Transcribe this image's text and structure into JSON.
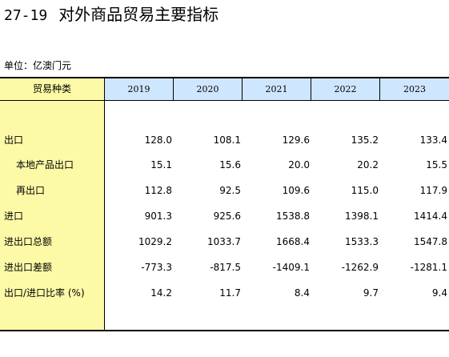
{
  "header": {
    "code": "27-19",
    "title": "对外商品贸易主要指标",
    "unit": "单位：亿澳门元"
  },
  "table": {
    "stub_header": "贸易种类",
    "years": [
      "2019",
      "2020",
      "2021",
      "2022",
      "2023"
    ],
    "rows": [
      {
        "label": "出口",
        "indent": false,
        "values": [
          "128.0",
          "108.1",
          "129.6",
          "135.2",
          "133.4"
        ]
      },
      {
        "label": "本地产品出口",
        "indent": true,
        "values": [
          "15.1",
          "15.6",
          "20.0",
          "20.2",
          "15.5"
        ]
      },
      {
        "label": "再出口",
        "indent": true,
        "values": [
          "112.8",
          "92.5",
          "109.6",
          "115.0",
          "117.9"
        ]
      },
      {
        "label": "进口",
        "indent": false,
        "values": [
          "901.3",
          "925.6",
          "1538.8",
          "1398.1",
          "1414.4"
        ]
      },
      {
        "label": "进出口总额",
        "indent": false,
        "values": [
          "1029.2",
          "1033.7",
          "1668.4",
          "1533.3",
          "1547.8"
        ]
      },
      {
        "label": "进出口差额",
        "indent": false,
        "values": [
          "-773.3",
          "-817.5",
          "-1409.1",
          "-1262.9",
          "-1281.1"
        ]
      },
      {
        "label": "出口/进口比率 (%)",
        "indent": false,
        "values": [
          "14.2",
          "11.7",
          "8.4",
          "9.7",
          "9.4"
        ]
      }
    ]
  },
  "colors": {
    "stub_background": "#fdfaa7",
    "header_background": "#cfe6ff"
  }
}
